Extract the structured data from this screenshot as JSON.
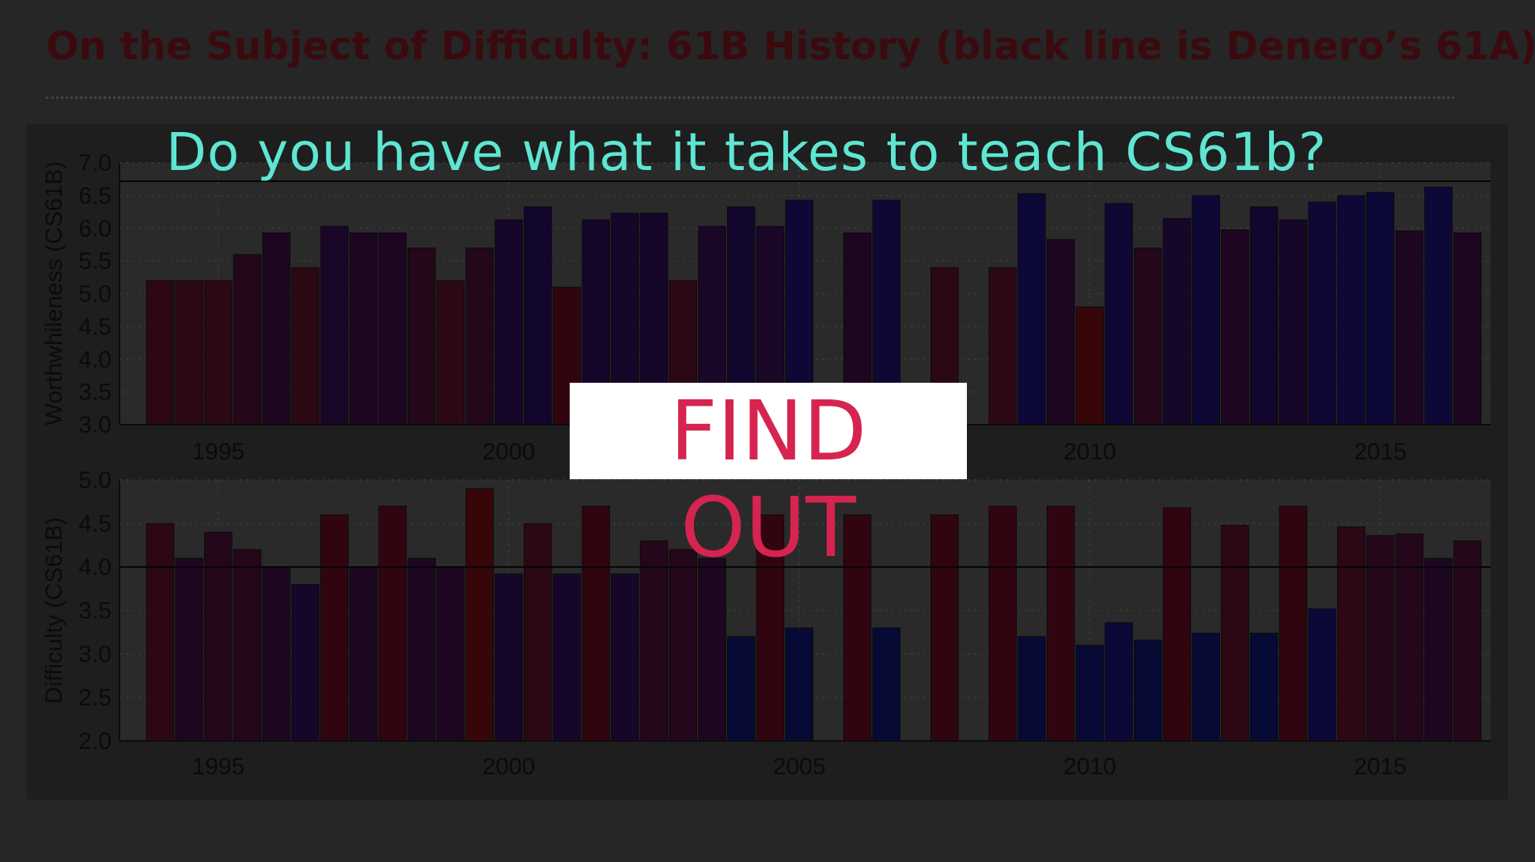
{
  "slide": {
    "title": "On the Subject of Difficulty: 61B History (black line is Denero’s 61A)",
    "headline": "Do you have what it takes to teach CS61b?",
    "cta_label": "FIND OUT"
  },
  "colors": {
    "background": "#262626",
    "panel": "#1e1e1e",
    "plot_bg": "#2a2a2a",
    "title": "#3b0a0e",
    "headline": "#5ee6d2",
    "cta_text": "#d62450",
    "cta_bg": "#ffffff"
  },
  "chart_data": [
    {
      "type": "bar",
      "ylabel": "Worthwhileness (CS61B)",
      "xlabel": "",
      "ylim": [
        3.0,
        7.0
      ],
      "xlim": [
        1993.3,
        2016.9
      ],
      "yticks": [
        3.0,
        3.5,
        4.0,
        4.5,
        5.0,
        5.5,
        6.0,
        6.5,
        7.0
      ],
      "xticks": [
        1995,
        2000,
        2005,
        2010,
        2015
      ],
      "grid": true,
      "reference_line": 6.72,
      "x": [
        1994.0,
        1994.5,
        1995.0,
        1995.5,
        1996.0,
        1996.5,
        1997.0,
        1997.5,
        1998.0,
        1998.5,
        1999.0,
        1999.5,
        2000.0,
        2000.5,
        2001.0,
        2001.5,
        2002.0,
        2002.5,
        2003.0,
        2003.5,
        2004.0,
        2004.5,
        2005.0,
        2006.0,
        2006.5,
        2007.5,
        2008.5,
        2009.0,
        2009.5,
        2010.0,
        2010.5,
        2011.0,
        2011.5,
        2012.0,
        2012.5,
        2013.0,
        2013.5,
        2014.0,
        2014.5,
        2015.0,
        2015.5,
        2016.0,
        2016.5
      ],
      "values": [
        5.2,
        5.2,
        5.2,
        5.6,
        5.93,
        5.4,
        6.03,
        5.93,
        5.93,
        5.7,
        5.2,
        5.7,
        6.13,
        6.33,
        5.1,
        6.13,
        6.23,
        6.23,
        5.2,
        6.03,
        6.33,
        6.03,
        6.43,
        5.93,
        6.43,
        5.4,
        5.4,
        6.53,
        5.83,
        4.8,
        6.38,
        5.7,
        6.15,
        6.5,
        5.98,
        6.33,
        6.13,
        6.4,
        6.5,
        6.55,
        5.96,
        6.63,
        5.93
      ],
      "colors": [
        "#2c0714",
        "#2c0714",
        "#2c0714",
        "#24071a",
        "#1c0620",
        "#2c0714",
        "#1a0626",
        "#1c0620",
        "#1c0620",
        "#24071a",
        "#2c0714",
        "#24071a",
        "#16062a",
        "#12062e",
        "#300510",
        "#16062a",
        "#16062a",
        "#16062a",
        "#2c0714",
        "#1a0626",
        "#12062e",
        "#1a0626",
        "#0f0834",
        "#1c0620",
        "#0f0834",
        "#2c0714",
        "#2c0714",
        "#0c0838",
        "#1c0620",
        "#360609",
        "#0f0834",
        "#24071a",
        "#16062a",
        "#0e0836",
        "#1c0620",
        "#12062e",
        "#16062a",
        "#0f0834",
        "#0e0836",
        "#0c0838",
        "#1c0620",
        "#0c0838",
        "#1c0620"
      ]
    },
    {
      "type": "bar",
      "ylabel": "Difficulty (CS61B)",
      "xlabel": "",
      "ylim": [
        2.0,
        5.0
      ],
      "xlim": [
        1993.3,
        2016.9
      ],
      "yticks": [
        2.0,
        2.5,
        3.0,
        3.5,
        4.0,
        4.5,
        5.0
      ],
      "xticks": [
        1995,
        2000,
        2005,
        2010,
        2015
      ],
      "grid": true,
      "reference_line": 4.0,
      "x": [
        1994.0,
        1994.5,
        1995.0,
        1995.5,
        1996.0,
        1996.5,
        1997.0,
        1997.5,
        1998.0,
        1998.5,
        1999.0,
        1999.5,
        2000.0,
        2000.5,
        2001.0,
        2001.5,
        2002.0,
        2002.5,
        2003.0,
        2003.5,
        2004.0,
        2004.5,
        2005.0,
        2006.0,
        2006.5,
        2007.5,
        2008.5,
        2009.0,
        2009.5,
        2010.0,
        2010.5,
        2011.0,
        2011.5,
        2012.0,
        2012.5,
        2013.0,
        2013.5,
        2014.0,
        2014.5,
        2015.0,
        2015.5,
        2016.0,
        2016.5
      ],
      "values": [
        4.5,
        4.1,
        4.4,
        4.2,
        4.0,
        3.8,
        4.6,
        4.0,
        4.7,
        4.1,
        4.0,
        4.9,
        3.92,
        4.5,
        3.92,
        4.7,
        3.92,
        4.3,
        4.2,
        4.1,
        3.2,
        4.6,
        3.3,
        4.6,
        3.3,
        4.6,
        4.7,
        3.2,
        4.7,
        3.1,
        3.36,
        3.16,
        4.68,
        3.24,
        4.48,
        3.24,
        4.7,
        3.52,
        4.46,
        4.36,
        4.38,
        4.1,
        4.3
      ],
      "colors": [
        "#2c0714",
        "#1c0620",
        "#24071a",
        "#24071a",
        "#1c0620",
        "#16062a",
        "#300510",
        "#1c0620",
        "#300510",
        "#1c0620",
        "#1c0620",
        "#360609",
        "#16062a",
        "#2c0714",
        "#16062a",
        "#300510",
        "#16062a",
        "#24071a",
        "#24071a",
        "#1c0620",
        "#060a34",
        "#300510",
        "#060a34",
        "#300510",
        "#060a34",
        "#300510",
        "#300510",
        "#060a34",
        "#300510",
        "#060a34",
        "#0c0838",
        "#060a34",
        "#300510",
        "#060a34",
        "#2c0714",
        "#060a34",
        "#300510",
        "#0c0838",
        "#2c0714",
        "#24071a",
        "#24071a",
        "#1c0620",
        "#24071a"
      ]
    }
  ]
}
